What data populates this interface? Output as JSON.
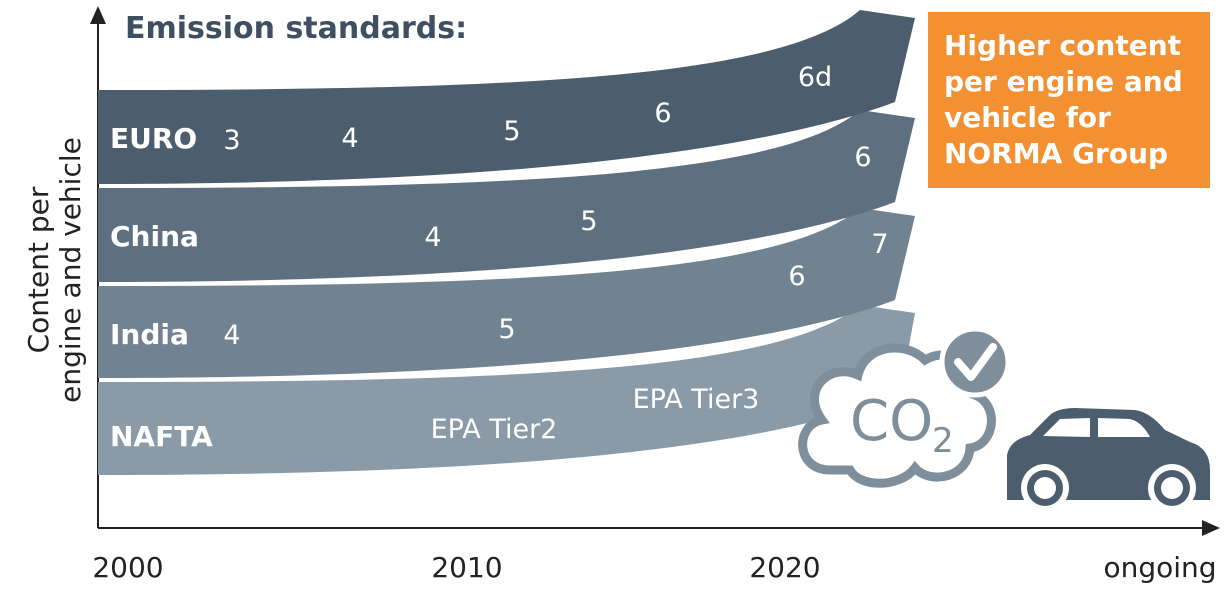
{
  "title": "Emission standards:",
  "y_axis_label": [
    "Content per",
    "engine and vehicle"
  ],
  "x_labels": [
    "2000",
    "2010",
    "2020",
    "ongoing"
  ],
  "bands": [
    {
      "name": "EURO",
      "stages": [
        "3",
        "4",
        "5",
        "6",
        "6d"
      ]
    },
    {
      "name": "China",
      "stages": [
        "4",
        "5",
        "6"
      ]
    },
    {
      "name": "India",
      "stages": [
        "4",
        "5",
        "6",
        "7"
      ]
    },
    {
      "name": "NAFTA",
      "stages": [
        "EPA Tier2",
        "EPA Tier3"
      ]
    }
  ],
  "callout": [
    "Higher content",
    "per engine and",
    "vehicle for",
    "NORMA Group"
  ],
  "co2": {
    "main": "CO",
    "subscript": "2"
  }
}
